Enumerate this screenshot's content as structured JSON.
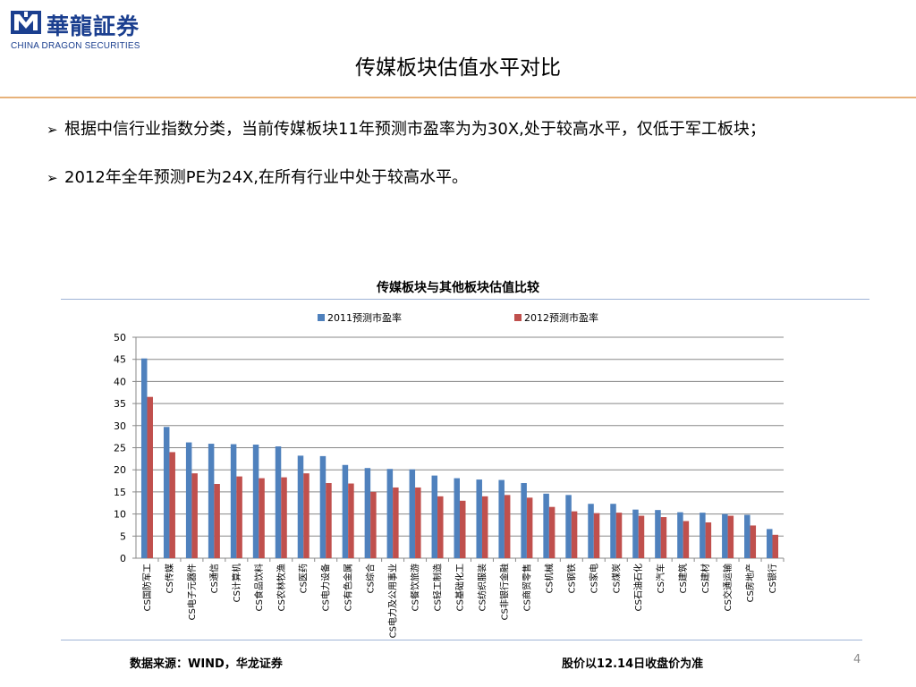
{
  "logo": {
    "chinese": "華龍証券",
    "english": "CHINA DRAGON SECURITIES"
  },
  "slide": {
    "title": "传媒板块估值水平对比",
    "bullets": [
      "根据中信行业指数分类，当前传媒板块11年预测市盈率为为30X,处于较高水平，仅低于军工板块；",
      "2012年全年预测PE为24X,在所有行业中处于较高水平。"
    ],
    "bullet_icon": "arrow-bullet-icon",
    "footer_source": "数据来源：WIND，华龙证券",
    "footer_note": "股价以12.14日收盘价为准",
    "page_number": "4"
  },
  "colors": {
    "series_2011": "#4f81bd",
    "series_2012": "#c0504d",
    "brand": "#1b3f8f",
    "title_rule": "#e7b27a"
  },
  "chart_data": {
    "type": "bar",
    "title": "传媒板块与其他板块估值比较",
    "xlabel": "",
    "ylabel": "",
    "ylim": [
      0,
      50
    ],
    "yticks": [
      0,
      5,
      10,
      15,
      20,
      25,
      30,
      35,
      40,
      45,
      50
    ],
    "grid": true,
    "legend_position": "top",
    "categories": [
      "CS国防军工",
      "CS传媒",
      "CS电子元器件",
      "CS通信",
      "CS计算机",
      "CS食品饮料",
      "CS农林牧渔",
      "CS医药",
      "CS电力设备",
      "CS有色金属",
      "CS综合",
      "CS电力及公用事业",
      "CS餐饮旅游",
      "CS轻工制造",
      "CS基础化工",
      "CS纺织服装",
      "CS非银行金融",
      "CS商贸零售",
      "CS机械",
      "CS钢铁",
      "CS家电",
      "CS煤炭",
      "CS石油石化",
      "CS汽车",
      "CS建筑",
      "CS建材",
      "CS交通运输",
      "CS房地产",
      "CS银行"
    ],
    "series": [
      {
        "name": "2011预测市盈率",
        "values": [
          45.2,
          29.7,
          26.2,
          25.9,
          25.8,
          25.7,
          25.3,
          23.2,
          23.1,
          21.1,
          20.4,
          20.2,
          20.1,
          18.7,
          18.1,
          17.8,
          17.7,
          17.0,
          14.6,
          14.3,
          12.3,
          12.3,
          11.0,
          10.9,
          10.4,
          10.3,
          10.0,
          9.8,
          6.6
        ]
      },
      {
        "name": "2012预测市盈率",
        "values": [
          36.5,
          24.0,
          19.2,
          16.8,
          18.5,
          18.1,
          18.3,
          19.2,
          17.0,
          16.9,
          15.0,
          16.0,
          16.0,
          14.0,
          13.0,
          14.0,
          14.3,
          13.7,
          11.6,
          10.6,
          10.2,
          10.3,
          9.6,
          9.3,
          8.4,
          8.1,
          9.6,
          7.4,
          5.3
        ]
      }
    ]
  }
}
